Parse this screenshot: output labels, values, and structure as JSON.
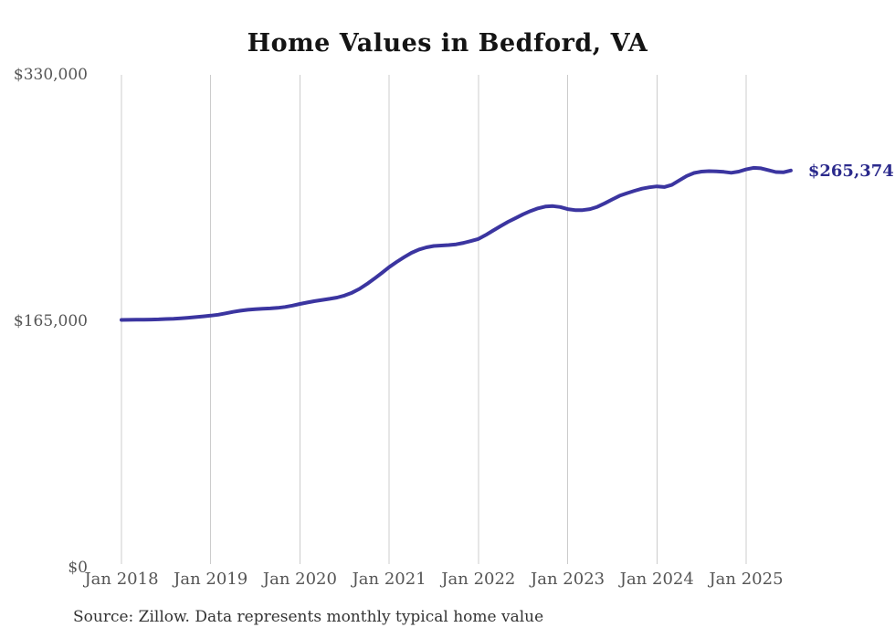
{
  "title": "Home Values in Bedford, VA",
  "source_note": "Source: Zillow. Data represents monthly typical home value",
  "end_label": "$265,374",
  "colors": {
    "line": "#3b35a0",
    "end_label": "#2b2a8c",
    "grid": "#cccccc",
    "axis_text": "#555555",
    "title_text": "#141414",
    "source_text": "#333333",
    "background": "#ffffff"
  },
  "chart_data": {
    "type": "line",
    "title": "Home Values in Bedford, VA",
    "xlabel": "",
    "ylabel": "",
    "x_start": "2018-01",
    "x_end": "2025-07",
    "x_interval": "monthly",
    "x_tick_labels": [
      "Jan 2018",
      "Jan 2019",
      "Jan 2020",
      "Jan 2021",
      "Jan 2022",
      "Jan 2023",
      "Jan 2024",
      "Jan 2025"
    ],
    "y_ticks": [
      0,
      165000,
      330000
    ],
    "y_tick_labels": [
      "$0",
      "$165,000",
      "$330,000"
    ],
    "ylim": [
      0,
      330000
    ],
    "grid": "vertical-only",
    "legend": "none",
    "final_value": 265374,
    "series": [
      {
        "name": "Monthly typical home value",
        "values": [
          165300,
          165350,
          165400,
          165450,
          165550,
          165700,
          165900,
          166100,
          166400,
          166800,
          167200,
          167700,
          168200,
          168800,
          169700,
          170700,
          171500,
          172100,
          172500,
          172800,
          173000,
          173400,
          174000,
          174900,
          176000,
          177000,
          177900,
          178700,
          179400,
          180300,
          181600,
          183500,
          186100,
          189300,
          192900,
          196700,
          200600,
          204100,
          207300,
          210200,
          212400,
          213900,
          214800,
          215100,
          215400,
          215900,
          216900,
          218100,
          219500,
          222200,
          225200,
          228200,
          231000,
          233500,
          236000,
          238200,
          240000,
          241200,
          241500,
          240900,
          239500,
          238800,
          238800,
          239500,
          241000,
          243400,
          246000,
          248500,
          250200,
          251800,
          253200,
          254100,
          254700,
          254300,
          255700,
          258700,
          261700,
          263700,
          264600,
          264900,
          264800,
          264400,
          263800,
          264600,
          266100,
          267100,
          266800,
          265600,
          264300,
          264100,
          265374
        ]
      }
    ]
  }
}
